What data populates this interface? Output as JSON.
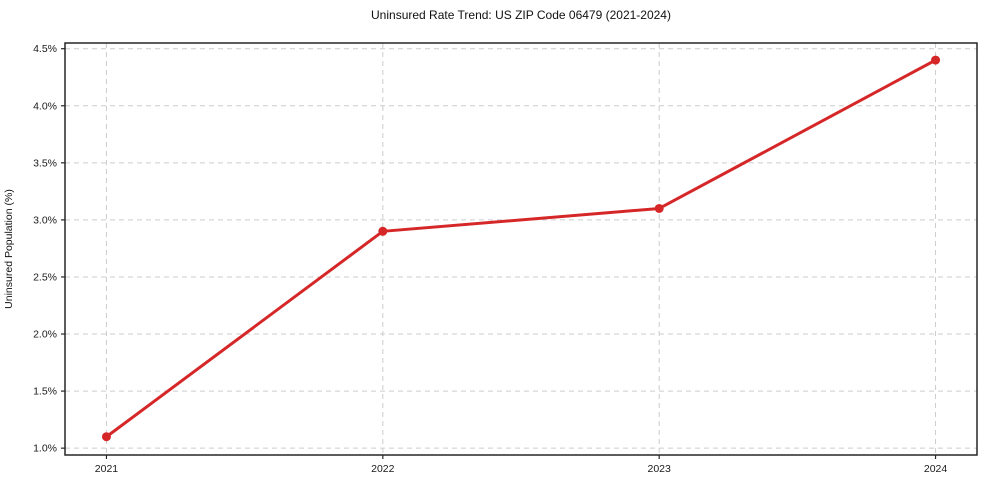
{
  "chart_data": {
    "type": "line",
    "title": "Uninsured Rate Trend: US ZIP Code 06479 (2021-2024)",
    "xlabel": "",
    "ylabel": "Uninsured Population (%)",
    "x": [
      2021,
      2022,
      2023,
      2024
    ],
    "x_tick_labels": [
      "2021",
      "2022",
      "2023",
      "2024"
    ],
    "series": [
      {
        "name": "uninsured-rate",
        "values": [
          1.1,
          2.9,
          3.1,
          4.4
        ]
      }
    ],
    "y_ticks": [
      1.0,
      1.5,
      2.0,
      2.5,
      3.0,
      3.5,
      4.0,
      4.5
    ],
    "y_tick_labels": [
      "1.0%",
      "1.5%",
      "2.0%",
      "2.5%",
      "3.0%",
      "3.5%",
      "4.0%",
      "4.5%"
    ],
    "xlim": [
      2020.85,
      2024.15
    ],
    "ylim": [
      0.94,
      4.55
    ],
    "grid": true,
    "grid_style": "dashed",
    "legend": "none",
    "colors": {
      "line": "#d62728",
      "marker": "#d62728",
      "grid": "#cccccc",
      "spine": "#262626",
      "tick_text": "#1a1a1a",
      "background": "#ffffff"
    }
  }
}
